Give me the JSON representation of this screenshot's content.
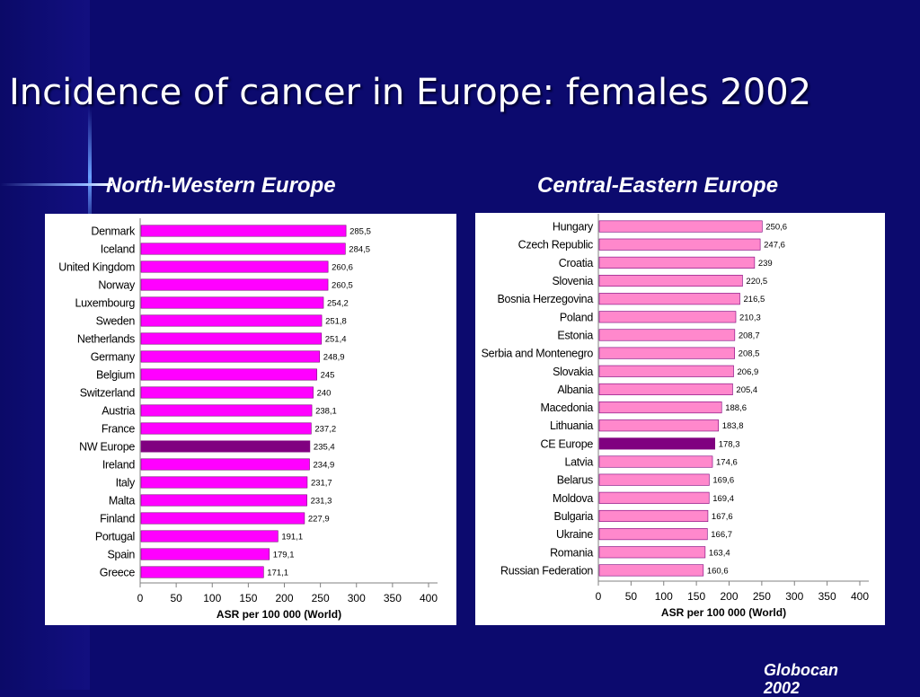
{
  "title": "Incidence of cancer in Europe: females 2002",
  "source": "Globocan 2002",
  "colors": {
    "background": "#0c0a6e",
    "bar_nw": "#ff00ff",
    "bar_nw_highlight": "#800080",
    "bar_ce": "#ff88cc",
    "bar_ce_highlight": "#800080"
  },
  "chart_data": [
    {
      "type": "bar",
      "orientation": "horizontal",
      "title": "North-Western Europe",
      "xlabel": "ASR per 100 000 (World)",
      "xlim": [
        0,
        400
      ],
      "xticks": [
        0,
        50,
        100,
        150,
        200,
        250,
        300,
        350,
        400
      ],
      "highlight": "NW Europe",
      "categories": [
        "Denmark",
        "Iceland",
        "United Kingdom",
        "Norway",
        "Luxembourg",
        "Sweden",
        "Netherlands",
        "Germany",
        "Belgium",
        "Switzerland",
        "Austria",
        "France",
        "NW Europe",
        "Ireland",
        "Italy",
        "Malta",
        "Finland",
        "Portugal",
        "Spain",
        "Greece"
      ],
      "values": [
        285.5,
        284.5,
        260.6,
        260.5,
        254.2,
        251.8,
        251.4,
        248.9,
        245,
        240,
        238.1,
        237.2,
        235.4,
        234.9,
        231.7,
        231.3,
        227.9,
        191.1,
        179.1,
        171.1
      ],
      "value_labels": [
        "285,5",
        "284,5",
        "260,6",
        "260,5",
        "254,2",
        "251,8",
        "251,4",
        "248,9",
        "245",
        "240",
        "238,1",
        "237,2",
        "235,4",
        "234,9",
        "231,7",
        "231,3",
        "227,9",
        "191,1",
        "179,1",
        "171,1"
      ]
    },
    {
      "type": "bar",
      "orientation": "horizontal",
      "title": "Central-Eastern Europe",
      "xlabel": "ASR per 100 000 (World)",
      "xlim": [
        0,
        400
      ],
      "xticks": [
        0,
        50,
        100,
        150,
        200,
        250,
        300,
        350,
        400
      ],
      "highlight": "CE Europe",
      "categories": [
        "Hungary",
        "Czech Republic",
        "Croatia",
        "Slovenia",
        "Bosnia Herzegovina",
        "Poland",
        "Estonia",
        "Serbia and Montenegro",
        "Slovakia",
        "Albania",
        "Macedonia",
        "Lithuania",
        "CE Europe",
        "Latvia",
        "Belarus",
        "Moldova",
        "Bulgaria",
        "Ukraine",
        "Romania",
        "Russian Federation"
      ],
      "values": [
        250.6,
        247.6,
        239,
        220.5,
        216.5,
        210.3,
        208.7,
        208.5,
        206.9,
        205.4,
        188.6,
        183.8,
        178.3,
        174.6,
        169.6,
        169.4,
        167.6,
        166.7,
        163.4,
        160.6
      ],
      "value_labels": [
        "250,6",
        "247,6",
        "239",
        "220,5",
        "216,5",
        "210,3",
        "208,7",
        "208,5",
        "206,9",
        "205,4",
        "188,6",
        "183,8",
        "178,3",
        "174,6",
        "169,6",
        "169,4",
        "167,6",
        "166,7",
        "163,4",
        "160,6"
      ]
    }
  ]
}
